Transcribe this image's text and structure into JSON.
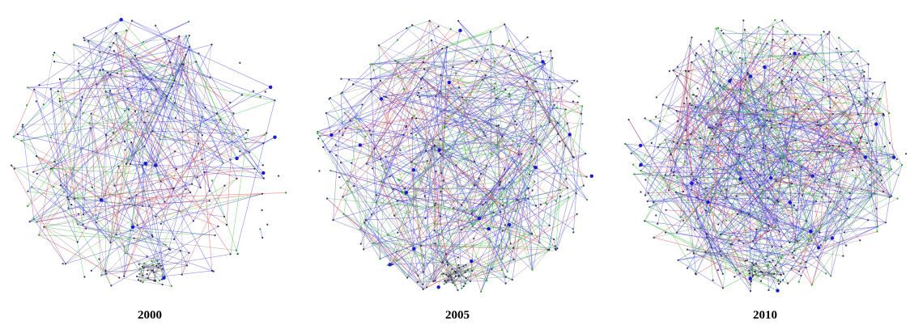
{
  "panels": [
    {
      "label": "2000"
    },
    {
      "label": "2005"
    },
    {
      "label": "2010"
    }
  ]
}
